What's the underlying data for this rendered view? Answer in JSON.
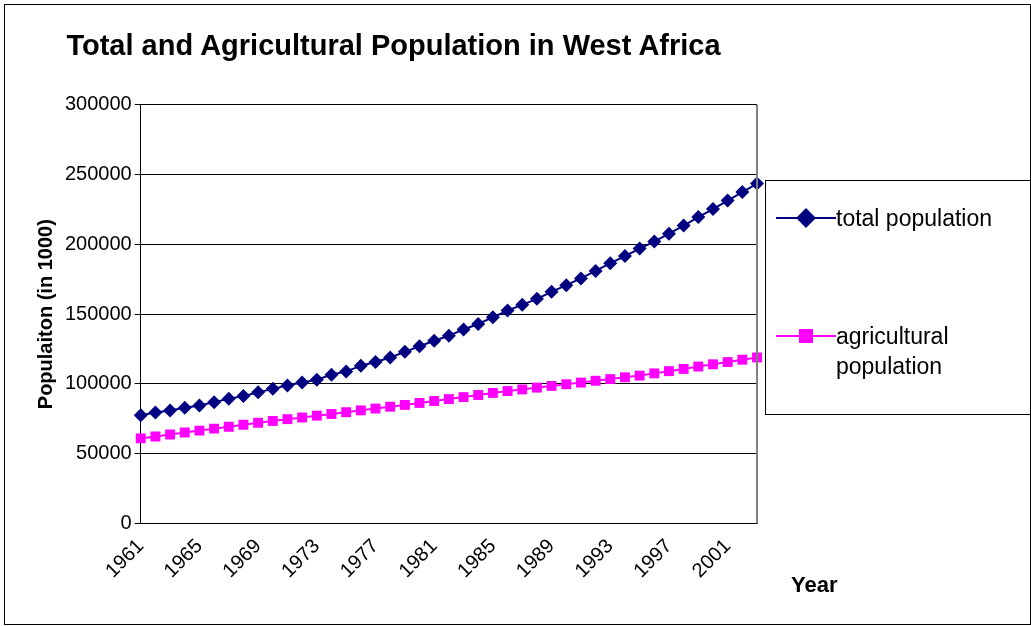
{
  "chart_data": {
    "type": "line",
    "title": "Total and Agricultural Population in West Africa",
    "xlabel": "Year",
    "ylabel": "Populaiton (in 1000)",
    "categories": [
      "1961",
      null,
      null,
      null,
      "1965",
      null,
      null,
      null,
      "1969",
      null,
      null,
      null,
      "1973",
      null,
      null,
      null,
      "1977",
      null,
      null,
      null,
      "1981",
      null,
      null,
      null,
      "1985",
      null,
      null,
      null,
      "1989",
      null,
      null,
      null,
      "1993",
      null,
      null,
      null,
      "1997",
      null,
      null,
      null,
      "2001",
      null,
      null
    ],
    "series": [
      {
        "name": "total population",
        "color": "#000080",
        "marker": "diamond",
        "values": [
          77600,
          79500,
          81000,
          83000,
          84600,
          87000,
          89400,
          91300,
          94000,
          96500,
          99000,
          101000,
          103000,
          106700,
          109000,
          113000,
          115700,
          119000,
          123000,
          127000,
          131000,
          134600,
          139000,
          143000,
          147800,
          152600,
          156700,
          161000,
          166000,
          170800,
          175600,
          181000,
          186500,
          191600,
          197000,
          202000,
          207700,
          213500,
          219600,
          225300,
          231400,
          237500,
          243600
        ]
      },
      {
        "name": "agricultural population",
        "color": "#ff00ff",
        "marker": "square",
        "values": [
          61000,
          62400,
          63800,
          65200,
          66600,
          68000,
          69400,
          70800,
          72200,
          73500,
          74800,
          76000,
          77300,
          78500,
          79800,
          81100,
          82400,
          83700,
          85000,
          86400,
          87800,
          89200,
          90600,
          92100,
          93600,
          94900,
          96100,
          97400,
          98600,
          99800,
          101000,
          102300,
          103500,
          104800,
          106000,
          107600,
          109200,
          110800,
          112500,
          114100,
          115700,
          117400,
          119000
        ]
      }
    ],
    "ylim": [
      0,
      300000
    ],
    "yticks": [
      0,
      50000,
      100000,
      150000,
      200000,
      250000,
      300000
    ],
    "grid": "y",
    "legend": "right"
  }
}
